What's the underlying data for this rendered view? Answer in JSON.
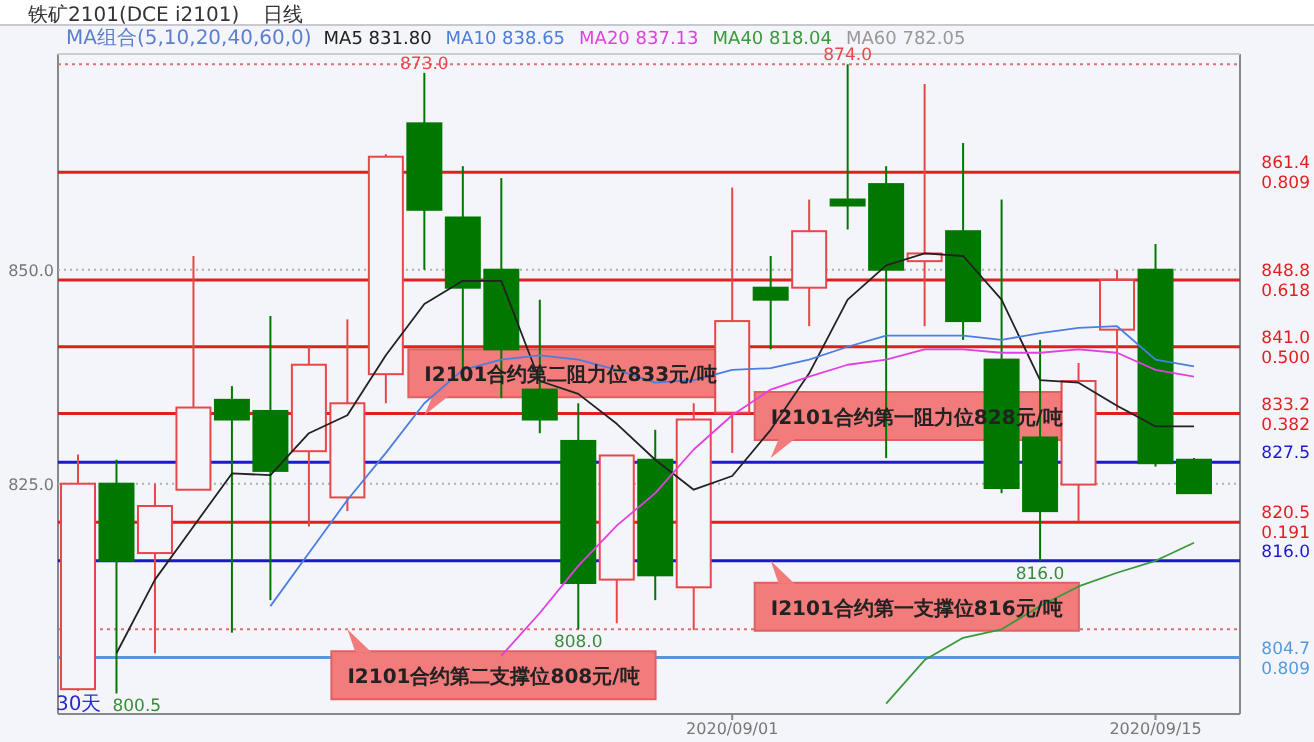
{
  "chart_data": {
    "type": "candlestick",
    "title": "铁矿2101(DCE i2101)",
    "subtitle": "日线",
    "legend_title": "MA组合(5,10,20,40,60,0)",
    "legend": "top",
    "grid": "y",
    "categories": [
      null,
      null,
      null,
      null,
      null,
      null,
      null,
      null,
      null,
      null,
      null,
      null,
      null,
      null,
      null,
      null,
      null,
      "2020/09/01",
      null,
      null,
      null,
      null,
      null,
      null,
      null,
      null,
      null,
      null,
      "2020/09/15",
      null
    ],
    "ylim": [
      798.1,
      875.2
    ],
    "yticks": [
      {
        "value": 825,
        "label": "825.0"
      },
      {
        "value": 850,
        "label": "850.0"
      }
    ],
    "ohlc": [
      [
        801.0,
        828.4,
        800.8,
        825.0
      ],
      [
        825.0,
        827.8,
        800.5,
        816.0
      ],
      [
        816.9,
        825.0,
        805.2,
        822.4
      ],
      [
        824.3,
        851.6,
        824.3,
        833.9
      ],
      [
        834.8,
        836.4,
        807.6,
        832.5
      ],
      [
        833.5,
        844.6,
        811.4,
        826.5
      ],
      [
        828.8,
        841.0,
        820.0,
        838.9
      ],
      [
        823.4,
        844.2,
        821.8,
        834.4
      ],
      [
        837.8,
        863.5,
        834.4,
        863.2
      ],
      [
        867.1,
        873.0,
        850.0,
        857.0
      ],
      [
        856.1,
        862.1,
        837.0,
        847.9
      ],
      [
        850.0,
        860.7,
        835.0,
        840.7
      ],
      [
        836.0,
        846.5,
        830.9,
        832.5
      ],
      [
        830.0,
        834.4,
        808.0,
        813.4
      ],
      [
        813.8,
        828.3,
        808.7,
        828.3
      ],
      [
        827.8,
        831.3,
        811.4,
        814.3
      ],
      [
        812.9,
        834.4,
        807.9,
        832.5
      ],
      [
        833.3,
        859.6,
        828.6,
        844.0
      ],
      [
        847.9,
        851.6,
        840.7,
        846.5
      ],
      [
        847.9,
        858.2,
        843.4,
        854.5
      ],
      [
        858.2,
        874.0,
        854.7,
        857.5
      ],
      [
        860.0,
        862.1,
        828.0,
        850.0
      ],
      [
        851.0,
        871.7,
        843.4,
        851.9
      ],
      [
        854.5,
        864.8,
        841.8,
        844.0
      ],
      [
        839.5,
        858.2,
        823.9,
        824.5
      ],
      [
        830.4,
        841.8,
        816.0,
        821.8
      ],
      [
        824.9,
        839.1,
        820.6,
        837.0
      ],
      [
        843.0,
        850.0,
        833.6,
        848.8
      ],
      [
        850.0,
        853.0,
        827.0,
        827.4
      ],
      [
        827.8,
        828.0,
        823.9,
        823.9
      ]
    ],
    "colors": [
      "#e8474a",
      "#007800",
      "#e8474a",
      "#e8474a",
      "#007800",
      "#007800",
      "#e8474a",
      "#e8474a",
      "#e8474a",
      "#007800",
      "#007800",
      "#007800",
      "#007800",
      "#007800",
      "#e8474a",
      "#007800",
      "#e8474a",
      "#e8474a",
      "#007800",
      "#e8474a",
      "#007800",
      "#007800",
      "#e8474a",
      "#007800",
      "#007800",
      "#007800",
      "#e8474a",
      "#e8474a",
      "#007800",
      "#007800"
    ],
    "series": [
      {
        "type": "line",
        "name": "MA5 831.80",
        "color": "#222222",
        "values": [
          null,
          805.2,
          813.8,
          820.0,
          826.2,
          826.0,
          830.9,
          833.0,
          840.0,
          846.0,
          848.7,
          848.7,
          837.0,
          835.5,
          832.0,
          827.8,
          824.3,
          825.9,
          831.3,
          837.9,
          846.5,
          850.5,
          851.9,
          851.6,
          846.5,
          837.1,
          836.8,
          834.1,
          831.7,
          831.7
        ]
      },
      {
        "type": "line",
        "name": "MA10 838.65",
        "color": "#4a7ee0",
        "values": [
          null,
          null,
          null,
          null,
          null,
          810.7,
          816.9,
          823.1,
          828.6,
          834.4,
          838.3,
          839.5,
          840.0,
          839.5,
          838.3,
          836.8,
          837.1,
          838.3,
          838.5,
          839.5,
          841.0,
          842.3,
          842.3,
          842.3,
          841.8,
          842.6,
          843.2,
          843.4,
          839.5,
          838.7
        ]
      },
      {
        "type": "line",
        "name": "MA20 837.13",
        "color": "#e040e0",
        "values": [
          null,
          null,
          null,
          null,
          null,
          null,
          null,
          null,
          null,
          null,
          null,
          804.9,
          809.9,
          815.4,
          820.1,
          823.9,
          829.0,
          833.0,
          836.0,
          837.5,
          838.9,
          839.5,
          840.7,
          840.7,
          840.3,
          840.3,
          840.7,
          840.3,
          838.3,
          837.5
        ]
      },
      {
        "type": "line",
        "name": "MA40 818.04",
        "color": "#3a9a3a",
        "values": [
          null,
          null,
          null,
          null,
          null,
          null,
          null,
          null,
          null,
          null,
          null,
          null,
          null,
          null,
          null,
          null,
          null,
          null,
          null,
          null,
          null,
          799.3,
          804.4,
          807.0,
          808.0,
          810.7,
          813.0,
          814.6,
          816.0,
          818.1
        ]
      },
      {
        "type": "line",
        "name": "MA60 782.05",
        "color": "#999999",
        "values": [
          null,
          null,
          null,
          null,
          null,
          null,
          null,
          null,
          null,
          null,
          null,
          null,
          null,
          null,
          null,
          null,
          null,
          null,
          null,
          null,
          null,
          null,
          null,
          null,
          null,
          null,
          null,
          null,
          null,
          null
        ]
      }
    ],
    "ref_lines": [
      {
        "axis": "y",
        "value": 861.4,
        "label": "861.4\n0.809",
        "color": "#e02020"
      },
      {
        "axis": "y",
        "value": 848.8,
        "label": "848.8\n0.618",
        "color": "#e02020"
      },
      {
        "axis": "y",
        "value": 841.0,
        "label": "841.0\n0.500",
        "color": "#e02020"
      },
      {
        "axis": "y",
        "value": 833.2,
        "label": "833.2\n0.382",
        "color": "#e02020"
      },
      {
        "axis": "y",
        "value": 827.5,
        "label": "827.5",
        "color": "#1a1acc"
      },
      {
        "axis": "y",
        "value": 820.5,
        "label": "820.5\n0.191",
        "color": "#e02020"
      },
      {
        "axis": "y",
        "value": 816.0,
        "label": "816.0",
        "color": "#1a1acc"
      },
      {
        "axis": "y",
        "value": 804.7,
        "label": "804.7\n0.809",
        "color": "#5599dd"
      },
      {
        "axis": "y",
        "value": 874.0,
        "color": "#e07070",
        "line_style": "dotted"
      },
      {
        "axis": "y",
        "value": 808.0,
        "color": "#e07070",
        "line_style": "dotted"
      }
    ],
    "annotations": [
      {
        "text": "I2101合约第二阻力位833元/吨",
        "y": 833
      },
      {
        "text": "I2101合约第一阻力位828元/吨",
        "y": 828
      },
      {
        "text": "I2101合约第一支撑位816元/吨",
        "y": 816
      },
      {
        "text": "I2101合约第二支撑位808元/吨",
        "y": 808
      },
      {
        "text": "873.0",
        "y": 873.0
      },
      {
        "text": "874.0",
        "y": 874.0
      },
      {
        "text": "808.0",
        "y": 808.0
      },
      {
        "text": "816.0",
        "y": 816.0
      },
      "800.5",
      "30天"
    ]
  }
}
